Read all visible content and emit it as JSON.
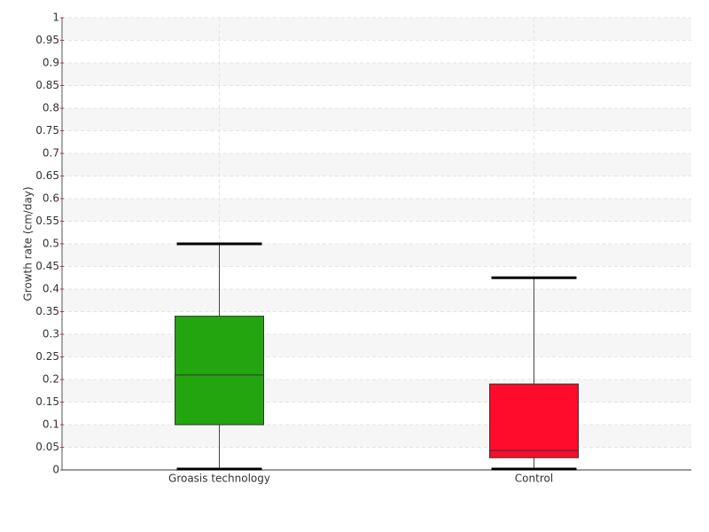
{
  "chart_data": {
    "type": "box",
    "y_label": "Growth rate (cm/day)",
    "categories": [
      "Groasis technology",
      "Control"
    ],
    "boxes": [
      {
        "min": 0,
        "q1": 0.1,
        "median": 0.21,
        "q3": 0.34,
        "max": 0.5,
        "color": "#22a50e"
      },
      {
        "min": 0,
        "q1": 0.027,
        "median": 0.043,
        "q3": 0.19,
        "max": 0.425,
        "color": "#ff0b2b"
      }
    ],
    "ylim": [
      0,
      1
    ],
    "yticks": [
      0,
      0.05,
      0.1,
      0.15,
      0.2,
      0.25,
      0.3,
      0.35,
      0.4,
      0.45,
      0.5,
      0.55,
      0.6,
      0.65,
      0.7,
      0.75,
      0.8,
      0.85,
      0.9,
      0.95,
      1
    ],
    "grid": true
  }
}
